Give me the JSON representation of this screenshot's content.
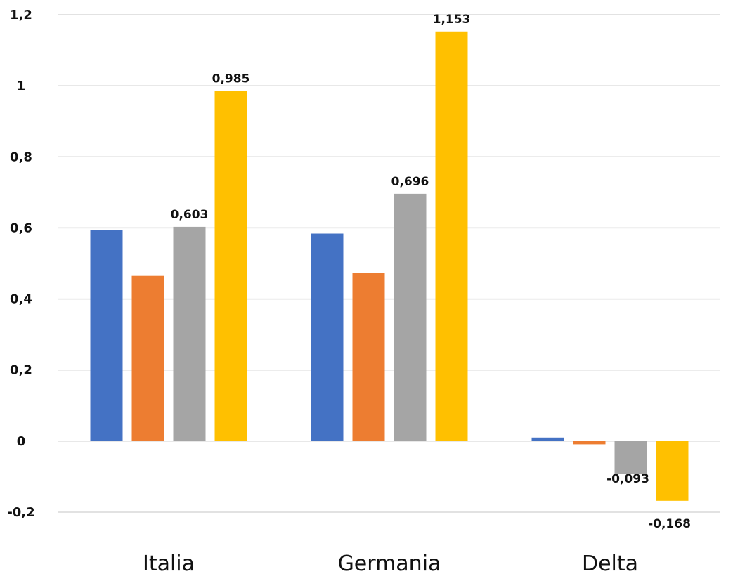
{
  "chart_data": {
    "type": "bar",
    "title": "",
    "xlabel": "",
    "ylabel": "",
    "categories": [
      "Italia",
      "Germania",
      "Delta"
    ],
    "series": [
      {
        "color": "#4472C4",
        "values": [
          0.594,
          0.584,
          0.01
        ],
        "labels": [
          "",
          "",
          ""
        ]
      },
      {
        "color": "#ED7D31",
        "values": [
          0.465,
          0.474,
          -0.009
        ],
        "labels": [
          "",
          "",
          ""
        ]
      },
      {
        "color": "#A5A5A5",
        "values": [
          0.603,
          0.696,
          -0.093
        ],
        "labels": [
          "0,603",
          "0,696",
          "-0,093"
        ]
      },
      {
        "color": "#FFC000",
        "values": [
          0.985,
          1.153,
          -0.168
        ],
        "labels": [
          "0,985",
          "1,153",
          "-0,168"
        ]
      }
    ],
    "ylim": [
      -0.2,
      1.2
    ],
    "yticks": [
      -0.2,
      0,
      0.2,
      0.4,
      0.6,
      0.8,
      1,
      1.2
    ],
    "ytick_labels": [
      "-0,2",
      "0",
      "0,2",
      "0,4",
      "0,6",
      "0,8",
      "1",
      "1,2"
    ],
    "grid": true,
    "legend": "none"
  }
}
